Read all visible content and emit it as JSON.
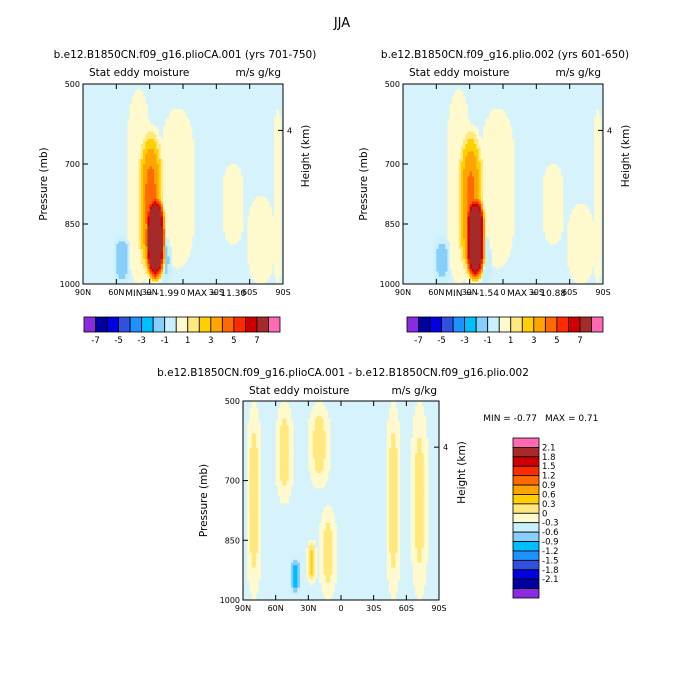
{
  "figure_title": "JJA",
  "colors": {
    "scale": [
      "#8a2be2",
      "#0000a0",
      "#0000e0",
      "#3050e0",
      "#1e90ff",
      "#00bfff",
      "#87cefa",
      "#c8f0ff",
      "#fffacd",
      "#ffe97f",
      "#ffd000",
      "#ffa500",
      "#ff6a00",
      "#ff2a00",
      "#d00000",
      "#a52a2a",
      "#ff69b4"
    ],
    "plot_background": "#d6f2fb"
  },
  "chart_data": [
    {
      "type": "heatmap",
      "panel": "top-left",
      "title": "b.e12.B1850CN.f09_g16.plioCA.001 (yrs 701-750)",
      "subtitle_left": "Stat eddy moisture",
      "subtitle_right": "m/s g/kg",
      "xlabel": "",
      "ylabel": "Pressure (mb)",
      "ylabel_right": "Height (km)",
      "x_ticks": [
        "90N",
        "60N",
        "30N",
        "0",
        "30S",
        "60S",
        "90S"
      ],
      "x_range": [
        90,
        -90
      ],
      "y_ticks": [
        "500",
        "700",
        "850",
        "1000"
      ],
      "y_tick_values": [
        500,
        700,
        850,
        1000
      ],
      "y_range": [
        500,
        1000
      ],
      "y_right_ticks": [
        "4"
      ],
      "y_right_tick_pressure": [
        616
      ],
      "min_label": "MIN = -1.99",
      "max_label": "MAX = 11.30",
      "min": -1.99,
      "max": 11.3,
      "levels": [
        -7,
        -6,
        -5,
        -4,
        -3,
        -2,
        -1,
        0,
        1,
        2,
        3,
        4,
        5,
        6,
        7
      ],
      "colorbar_labels": [
        "-7",
        "-5",
        "-3",
        "-1",
        "1",
        "3",
        "5",
        "7"
      ],
      "colorbar_orientation": "horizontal",
      "features": [
        {
          "lat_center": 40,
          "lat_halfwidth": 11,
          "p_top": 510,
          "p_bottom": 1000,
          "peak": 0.6
        },
        {
          "lat_center": 29,
          "lat_halfwidth": 13,
          "p_top": 600,
          "p_bottom": 1000,
          "peak": 4.5
        },
        {
          "lat_center": 25,
          "lat_halfwidth": 10,
          "p_top": 770,
          "p_bottom": 1000,
          "peak": 11.3
        },
        {
          "lat_center": 5,
          "lat_halfwidth": 16,
          "p_top": 560,
          "p_bottom": 960,
          "peak": 0.55
        },
        {
          "lat_center": -45,
          "lat_halfwidth": 10,
          "p_top": 700,
          "p_bottom": 900,
          "peak": 0.5
        },
        {
          "lat_center": -70,
          "lat_halfwidth": 12,
          "p_top": 780,
          "p_bottom": 1000,
          "peak": 0.5
        },
        {
          "lat_center": -85,
          "lat_halfwidth": 4,
          "p_top": 560,
          "p_bottom": 1000,
          "peak": 0.6
        },
        {
          "lat_center": 55,
          "lat_halfwidth": 8,
          "p_top": 880,
          "p_bottom": 1000,
          "peak": -1.99
        },
        {
          "lat_center": 15,
          "lat_halfwidth": 5,
          "p_top": 880,
          "p_bottom": 1000,
          "peak": -1.2
        }
      ]
    },
    {
      "type": "heatmap",
      "panel": "top-right",
      "title": "b.e12.B1850CN.f09_g16.plio.002 (yrs 601-650)",
      "subtitle_left": "Stat eddy moisture",
      "subtitle_right": "m/s g/kg",
      "xlabel": "",
      "ylabel": "Pressure (mb)",
      "ylabel_right": "Height (km)",
      "x_ticks": [
        "90N",
        "60N",
        "30N",
        "0",
        "30S",
        "60S",
        "90S"
      ],
      "x_range": [
        90,
        -90
      ],
      "y_ticks": [
        "500",
        "700",
        "850",
        "1000"
      ],
      "y_tick_values": [
        500,
        700,
        850,
        1000
      ],
      "y_range": [
        500,
        1000
      ],
      "y_right_ticks": [
        "4"
      ],
      "y_right_tick_pressure": [
        616
      ],
      "min_label": "MIN = -1.54",
      "max_label": "MAX = 10.88",
      "min": -1.54,
      "max": 10.88,
      "levels": [
        -7,
        -6,
        -5,
        -4,
        -3,
        -2,
        -1,
        0,
        1,
        2,
        3,
        4,
        5,
        6,
        7
      ],
      "colorbar_labels": [
        "-7",
        "-5",
        "-3",
        "-1",
        "1",
        "3",
        "5",
        "7"
      ],
      "colorbar_orientation": "horizontal",
      "features": [
        {
          "lat_center": 40,
          "lat_halfwidth": 11,
          "p_top": 510,
          "p_bottom": 1000,
          "peak": 0.6
        },
        {
          "lat_center": 29,
          "lat_halfwidth": 13,
          "p_top": 600,
          "p_bottom": 1000,
          "peak": 4.3
        },
        {
          "lat_center": 25,
          "lat_halfwidth": 10,
          "p_top": 770,
          "p_bottom": 1000,
          "peak": 10.88
        },
        {
          "lat_center": 5,
          "lat_halfwidth": 16,
          "p_top": 560,
          "p_bottom": 960,
          "peak": 0.55
        },
        {
          "lat_center": -45,
          "lat_halfwidth": 10,
          "p_top": 700,
          "p_bottom": 900,
          "peak": 0.5
        },
        {
          "lat_center": -70,
          "lat_halfwidth": 12,
          "p_top": 800,
          "p_bottom": 1000,
          "peak": 0.5
        },
        {
          "lat_center": -85,
          "lat_halfwidth": 4,
          "p_top": 560,
          "p_bottom": 1000,
          "peak": 0.6
        },
        {
          "lat_center": 55,
          "lat_halfwidth": 8,
          "p_top": 880,
          "p_bottom": 1000,
          "peak": -1.54
        },
        {
          "lat_center": 15,
          "lat_halfwidth": 5,
          "p_top": 880,
          "p_bottom": 1000,
          "peak": -1.0
        }
      ]
    },
    {
      "type": "heatmap",
      "panel": "bottom-center",
      "title": "b.e12.B1850CN.f09_g16.plioCA.001 - b.e12.B1850CN.f09_g16.plio.002",
      "subtitle_left": "Stat eddy moisture",
      "subtitle_right": "m/s g/kg",
      "xlabel": "",
      "ylabel": "Pressure (mb)",
      "ylabel_right": "Height (km)",
      "x_ticks": [
        "90N",
        "60N",
        "30N",
        "0",
        "30S",
        "60S",
        "90S"
      ],
      "x_range": [
        90,
        -90
      ],
      "y_ticks": [
        "500",
        "700",
        "850",
        "1000"
      ],
      "y_tick_values": [
        500,
        700,
        850,
        1000
      ],
      "y_range": [
        500,
        1000
      ],
      "y_right_ticks": [
        "4"
      ],
      "y_right_tick_pressure": [
        616
      ],
      "min_label": "MIN = -0.77",
      "max_label": "MAX = 0.71",
      "min": -0.77,
      "max": 0.71,
      "levels": [
        -2.1,
        -1.8,
        -1.5,
        -1.2,
        -0.9,
        -0.6,
        -0.3,
        0,
        0.3,
        0.6,
        0.9,
        1.2,
        1.5,
        1.8,
        2.1
      ],
      "colorbar_labels": [
        "2.1",
        "1.8",
        "1.5",
        "1.2",
        "0.9",
        "0.6",
        "0.3",
        "0",
        "-0.3",
        "-0.6",
        "-0.9",
        "-1.2",
        "-1.5",
        "-1.8",
        "-2.1"
      ],
      "colorbar_orientation": "vertical",
      "features": [
        {
          "lat_center": 80,
          "lat_halfwidth": 7,
          "p_top": 500,
          "p_bottom": 1000,
          "peak": 0.45
        },
        {
          "lat_center": 52,
          "lat_halfwidth": 8,
          "p_top": 500,
          "p_bottom": 760,
          "peak": 0.42
        },
        {
          "lat_center": 20,
          "lat_halfwidth": 10,
          "p_top": 500,
          "p_bottom": 720,
          "peak": 0.42
        },
        {
          "lat_center": 27,
          "lat_halfwidth": 5,
          "p_top": 850,
          "p_bottom": 960,
          "peak": 0.71
        },
        {
          "lat_center": 12,
          "lat_halfwidth": 8,
          "p_top": 760,
          "p_bottom": 1000,
          "peak": 0.4
        },
        {
          "lat_center": -48,
          "lat_halfwidth": 7,
          "p_top": 500,
          "p_bottom": 1000,
          "peak": 0.45
        },
        {
          "lat_center": -72,
          "lat_halfwidth": 8,
          "p_top": 500,
          "p_bottom": 1000,
          "peak": 0.4
        },
        {
          "lat_center": 42,
          "lat_halfwidth": 5,
          "p_top": 890,
          "p_bottom": 990,
          "peak": -0.77
        }
      ]
    }
  ]
}
